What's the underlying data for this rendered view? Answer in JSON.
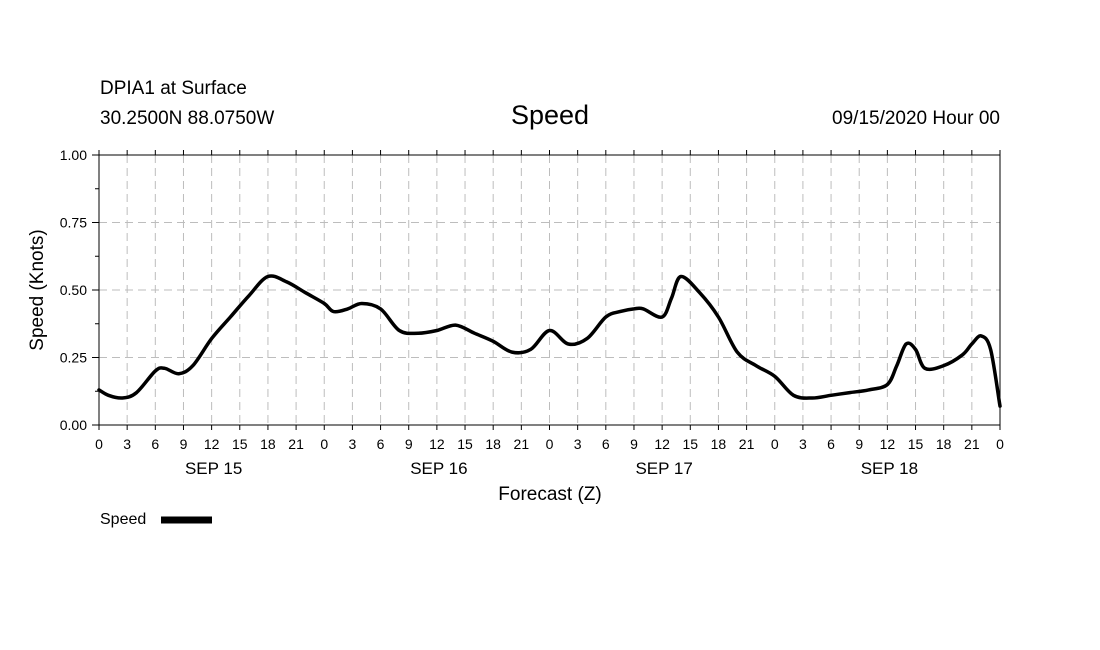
{
  "header": {
    "station": "DPIA1 at Surface",
    "coords": "30.2500N 88.0750W",
    "title": "Speed",
    "run": "09/15/2020 Hour 00"
  },
  "chart_data": {
    "type": "line",
    "title": "Speed",
    "xlabel": "Forecast (Z)",
    "ylabel": "Speed (Knots)",
    "ylim": [
      0,
      1
    ],
    "yticks": [
      "0.00",
      "0.25",
      "0.50",
      "0.75",
      "1.00"
    ],
    "xlim": [
      0,
      96
    ],
    "xticks": [
      "0",
      "3",
      "6",
      "9",
      "12",
      "15",
      "18",
      "21",
      "0",
      "3",
      "6",
      "9",
      "12",
      "15",
      "18",
      "21",
      "0",
      "3",
      "6",
      "9",
      "12",
      "15",
      "18",
      "21",
      "0",
      "3",
      "6",
      "9",
      "12",
      "15",
      "18",
      "21",
      "0"
    ],
    "day_labels": [
      {
        "label": "SEP 15",
        "hour": 12
      },
      {
        "label": "SEP 16",
        "hour": 36
      },
      {
        "label": "SEP 17",
        "hour": 60
      },
      {
        "label": "SEP 18",
        "hour": 84
      }
    ],
    "grid": true,
    "legend_position": "bottom-left",
    "series": [
      {
        "name": "Speed",
        "color": "#000000",
        "x": [
          0,
          1,
          2.5,
          4,
          6,
          7,
          8.5,
          10,
          12,
          14,
          16,
          18,
          20,
          22,
          24,
          25,
          26.5,
          28,
          30,
          32,
          34,
          36,
          38,
          40,
          42,
          44,
          46,
          48,
          50,
          52,
          54,
          55.5,
          57,
          58,
          60,
          61,
          62,
          64,
          66,
          68,
          70,
          72,
          74,
          76,
          78,
          80,
          82,
          84,
          85,
          86,
          87,
          88,
          90,
          92,
          93,
          94,
          95,
          96
        ],
        "y": [
          0.13,
          0.11,
          0.1,
          0.12,
          0.2,
          0.21,
          0.19,
          0.22,
          0.32,
          0.4,
          0.48,
          0.55,
          0.53,
          0.49,
          0.45,
          0.42,
          0.43,
          0.45,
          0.43,
          0.35,
          0.34,
          0.35,
          0.37,
          0.34,
          0.31,
          0.27,
          0.28,
          0.35,
          0.3,
          0.32,
          0.4,
          0.42,
          0.43,
          0.43,
          0.4,
          0.47,
          0.55,
          0.49,
          0.4,
          0.27,
          0.22,
          0.18,
          0.11,
          0.1,
          0.11,
          0.12,
          0.13,
          0.15,
          0.22,
          0.3,
          0.28,
          0.21,
          0.22,
          0.26,
          0.3,
          0.33,
          0.28,
          0.07
        ]
      }
    ]
  }
}
